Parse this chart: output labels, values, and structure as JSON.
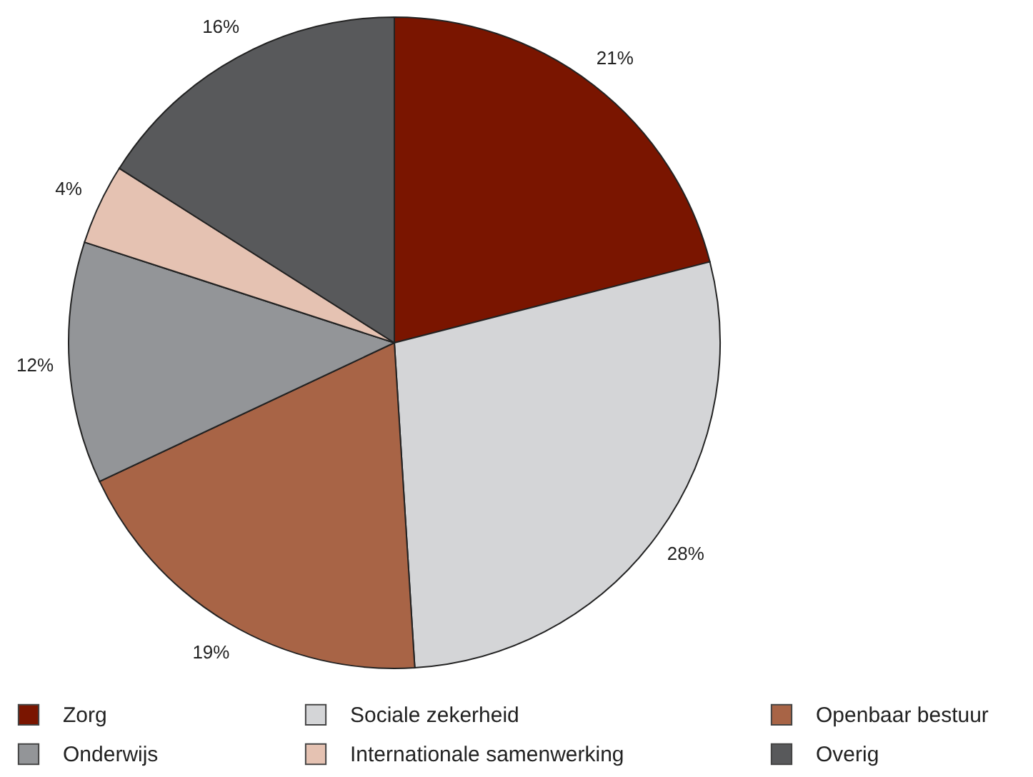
{
  "chart_data": {
    "type": "pie",
    "categories": [
      "Zorg",
      "Sociale zekerheid",
      "Openbaar bestuur",
      "Onderwijs",
      "Internationale samenwerking",
      "Overig"
    ],
    "values": [
      21,
      28,
      19,
      12,
      4,
      16
    ],
    "value_labels": [
      "21%",
      "28%",
      "19%",
      "12%",
      "4%",
      "16%"
    ],
    "colors": [
      "#7a1500",
      "#d4d5d7",
      "#a86446",
      "#939598",
      "#e5c2b2",
      "#58595b"
    ],
    "legend": "bottom"
  }
}
